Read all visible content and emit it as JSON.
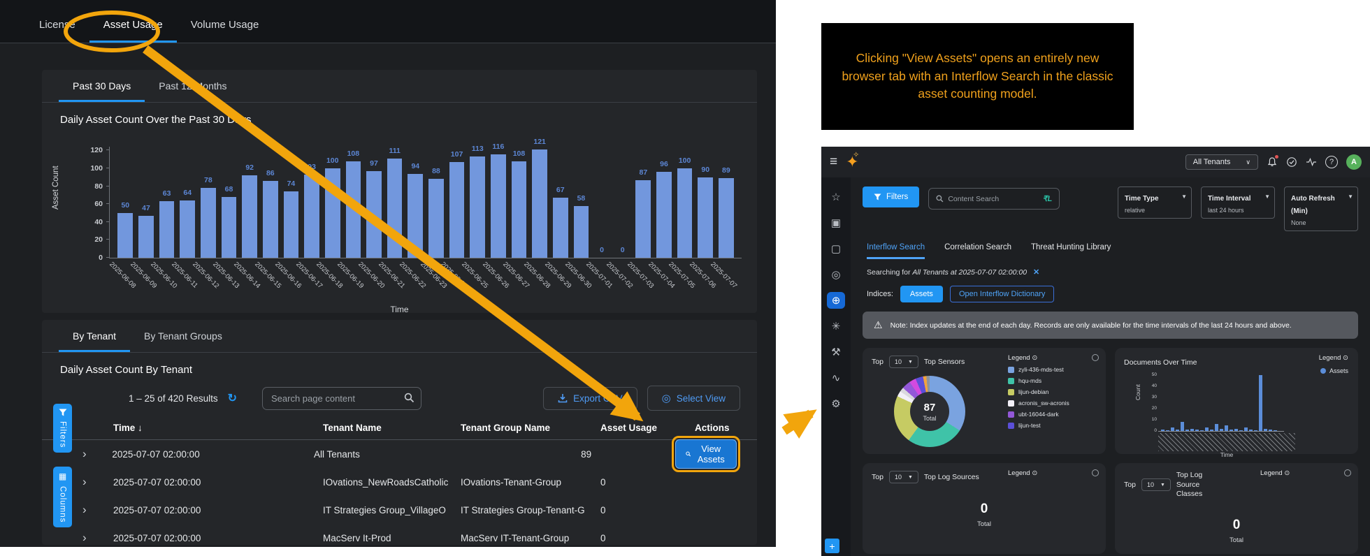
{
  "left_panel": {
    "tabs": [
      {
        "label": "License",
        "active": false
      },
      {
        "label": "Asset Usage",
        "active": true,
        "highlighted": true
      },
      {
        "label": "Volume Usage",
        "active": false
      }
    ],
    "chart_card": {
      "sub_tabs": [
        {
          "label": "Past 30 Days",
          "active": true
        },
        {
          "label": "Past 12 Months",
          "active": false
        }
      ],
      "title": "Daily Asset Count Over the Past 30 Days"
    },
    "table_card": {
      "tabs": [
        {
          "label": "By Tenant",
          "active": true
        },
        {
          "label": "By Tenant Groups",
          "active": false
        }
      ],
      "title": "Daily Asset Count By Tenant",
      "results_text": "1 – 25 of 420 Results",
      "search_placeholder": "Search page content",
      "export_button": "Export CSV",
      "select_view_button": "Select View",
      "columns": [
        "Time",
        "Tenant Name",
        "Tenant Group Name",
        "Asset Usage",
        "Actions"
      ],
      "sort_indicator": "↓",
      "rows": [
        {
          "time": "2025-07-07 02:00:00",
          "tenant": "All Tenants",
          "group": "",
          "usage": "89",
          "action": "View Assets",
          "highlighted": true
        },
        {
          "time": "2025-07-07 02:00:00",
          "tenant": "IOvations_NewRoadsCatholic",
          "group": "IOvations-Tenant-Group",
          "usage": "0"
        },
        {
          "time": "2025-07-07 02:00:00",
          "tenant": "IT Strategies Group_VillageO",
          "group": "IT Strategies Group-Tenant-G",
          "usage": "0"
        },
        {
          "time": "2025-07-07 02:00:00",
          "tenant": "MacServ It-Prod",
          "group": "MacServ IT-Tenant-Group",
          "usage": "0"
        }
      ],
      "side_buttons": [
        {
          "label": "Filters"
        },
        {
          "label": "Columns"
        }
      ]
    }
  },
  "annotation": {
    "text": "Clicking \"View Assets\" opens an entirely new browser tab with an Interflow Search in the classic asset counting model."
  },
  "right_panel": {
    "topbar": {
      "tenant_selector": "All Tenants",
      "icons": [
        "bell",
        "check-circle",
        "activity",
        "help"
      ],
      "avatar": "A"
    },
    "sidebar_icons": [
      "star",
      "media-card",
      "bag",
      "radar",
      "target",
      "network",
      "robot",
      "chart",
      "gear"
    ],
    "active_sidebar_icon": "target",
    "add_button": "+",
    "filters_button": "Filters",
    "content_search_placeholder": "Content Search",
    "dropdowns": [
      {
        "label": "Time Type",
        "value": "relative"
      },
      {
        "label": "Time Interval",
        "value": "last 24 hours"
      },
      {
        "label": "Auto Refresh (Min)",
        "value": "None"
      }
    ],
    "tabs": [
      {
        "label": "Interflow Search",
        "active": true
      },
      {
        "label": "Correlation Search",
        "active": false
      },
      {
        "label": "Threat Hunting Library",
        "active": false
      }
    ],
    "searching_prefix": "Searching for",
    "searching_detail": "All Tenants at 2025-07-07 02:00:00",
    "indices_label": "Indices:",
    "indices_button": "Assets",
    "dictionary_button": "Open Interflow Dictionary",
    "note": "Note: Index updates at the end of each day. Records are only available for the time intervals of the last 24 hours and above.",
    "cards": {
      "top_sensors": {
        "top_label": "Top",
        "top_value": "10",
        "title": "Top Sensors",
        "legend_title": "Legend",
        "center_value": "87",
        "center_label": "Total"
      },
      "documents_over_time": {
        "title": "Documents Over Time",
        "legend_title": "Legend",
        "legend_series": "Assets",
        "series_color": "#5b8dd9",
        "ylabel": "Count",
        "xlabel": "Time"
      },
      "top_log_sources": {
        "top_label": "Top",
        "top_value": "10",
        "title": "Top Log Sources",
        "legend_title": "Legend",
        "total_value": "0",
        "total_label": "Total"
      },
      "top_log_source_classes": {
        "top_label": "Top",
        "top_value": "10",
        "title": "Top Log Source Classes",
        "legend_title": "Legend",
        "total_value": "0",
        "total_label": "Total"
      }
    }
  },
  "chart_data": [
    {
      "type": "bar",
      "title": "Daily Asset Count Over the Past 30 Days",
      "xlabel": "Time",
      "ylabel": "Asset Count",
      "ylim": [
        0,
        120
      ],
      "yticks": [
        0,
        20,
        40,
        60,
        80,
        100,
        120
      ],
      "bar_color": "#7297dd",
      "label_color": "#5c86d4",
      "categories": [
        "2025-06-08",
        "2025-06-09",
        "2025-06-10",
        "2025-06-11",
        "2025-06-12",
        "2025-06-13",
        "2025-06-14",
        "2025-06-15",
        "2025-06-16",
        "2025-06-17",
        "2025-06-18",
        "2025-06-19",
        "2025-06-20",
        "2025-06-21",
        "2025-06-22",
        "2025-06-23",
        "2025-06-24",
        "2025-06-25",
        "2025-06-26",
        "2025-06-27",
        "2025-06-28",
        "2025-06-29",
        "2025-06-30",
        "2025-07-01",
        "2025-07-02",
        "2025-07-03",
        "2025-07-04",
        "2025-07-05",
        "2025-07-06",
        "2025-07-07"
      ],
      "values": [
        50,
        47,
        63,
        64,
        78,
        68,
        92,
        86,
        74,
        93,
        100,
        108,
        97,
        111,
        94,
        88,
        107,
        113,
        116,
        108,
        121,
        67,
        58,
        0,
        0,
        87,
        96,
        100,
        90,
        89
      ]
    },
    {
      "type": "pie",
      "title": "Top Sensors",
      "total": 87,
      "slices": [
        {
          "label": "zyli-436-mds-test",
          "color": "#7aa3e0",
          "pct": 34
        },
        {
          "label": "hqu-mds",
          "color": "#3fc3a8",
          "pct": 26
        },
        {
          "label": "lijun-debian",
          "color": "#c6cb63",
          "pct": 22
        },
        {
          "label": "acronis_sw-acronis",
          "color": "#f2f0f8",
          "pct": 2.5
        },
        {
          "label": "",
          "color": "#d9d9de",
          "pct": 2
        },
        {
          "label": "ubt-16044-dark",
          "color": "#9358d8",
          "pct": 4
        },
        {
          "label": "",
          "color": "#d24ae0",
          "pct": 3
        },
        {
          "label": "lijun-test",
          "color": "#5b4fd8",
          "pct": 3.5
        },
        {
          "label": "",
          "color": "#f2a33c",
          "pct": 1.5
        },
        {
          "label": "",
          "color": "#8e939a",
          "pct": 1.5
        }
      ],
      "legend_position": "right"
    },
    {
      "type": "bar",
      "title": "Documents Over Time",
      "series_name": "Assets",
      "xlabel": "Time",
      "ylabel": "Count",
      "ylim": [
        0,
        50
      ],
      "yticks": [
        0,
        10,
        20,
        30,
        40,
        50
      ],
      "bar_color": "#5b8dd9",
      "x_tick_style": "rotated-timestamps-illegible",
      "values": [
        1,
        0,
        3,
        1,
        8,
        1,
        2,
        1,
        0,
        3,
        1,
        6,
        2,
        5,
        1,
        2,
        0,
        3,
        1,
        0,
        50,
        2,
        1,
        0
      ]
    }
  ]
}
